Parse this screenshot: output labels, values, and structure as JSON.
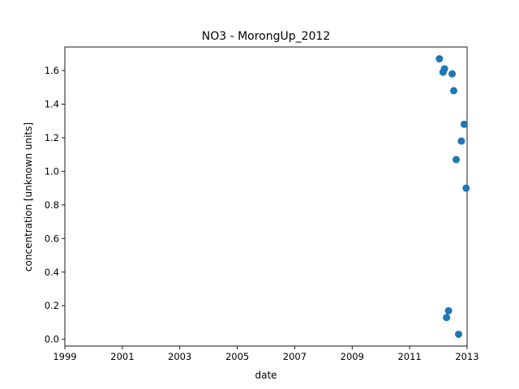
{
  "chart_data": {
    "type": "scatter",
    "title": "NO3 - MorongUp_2012",
    "xlabel": "date",
    "ylabel": "concentration [unknown units]",
    "xlim": [
      "1999-01-01",
      "2013-01-01"
    ],
    "ylim": [
      -0.04,
      1.74
    ],
    "x_ticks": [
      "1999",
      "2001",
      "2003",
      "2005",
      "2007",
      "2009",
      "2011",
      "2013"
    ],
    "y_ticks": [
      "0.0",
      "0.2",
      "0.4",
      "0.6",
      "0.8",
      "1.0",
      "1.2",
      "1.4",
      "1.6"
    ],
    "grid": false,
    "color": "#1f77b4",
    "points": [
      {
        "x": "2012-01-15",
        "y": 1.67
      },
      {
        "x": "2012-03-01",
        "y": 1.59
      },
      {
        "x": "2012-03-20",
        "y": 1.61
      },
      {
        "x": "2012-04-15",
        "y": 0.13
      },
      {
        "x": "2012-05-10",
        "y": 0.17
      },
      {
        "x": "2012-06-25",
        "y": 1.58
      },
      {
        "x": "2012-07-15",
        "y": 1.48
      },
      {
        "x": "2012-08-15",
        "y": 1.07
      },
      {
        "x": "2012-09-15",
        "y": 0.03
      },
      {
        "x": "2012-10-20",
        "y": 1.18
      },
      {
        "x": "2012-11-25",
        "y": 1.28
      },
      {
        "x": "2012-12-20",
        "y": 0.9
      }
    ]
  }
}
